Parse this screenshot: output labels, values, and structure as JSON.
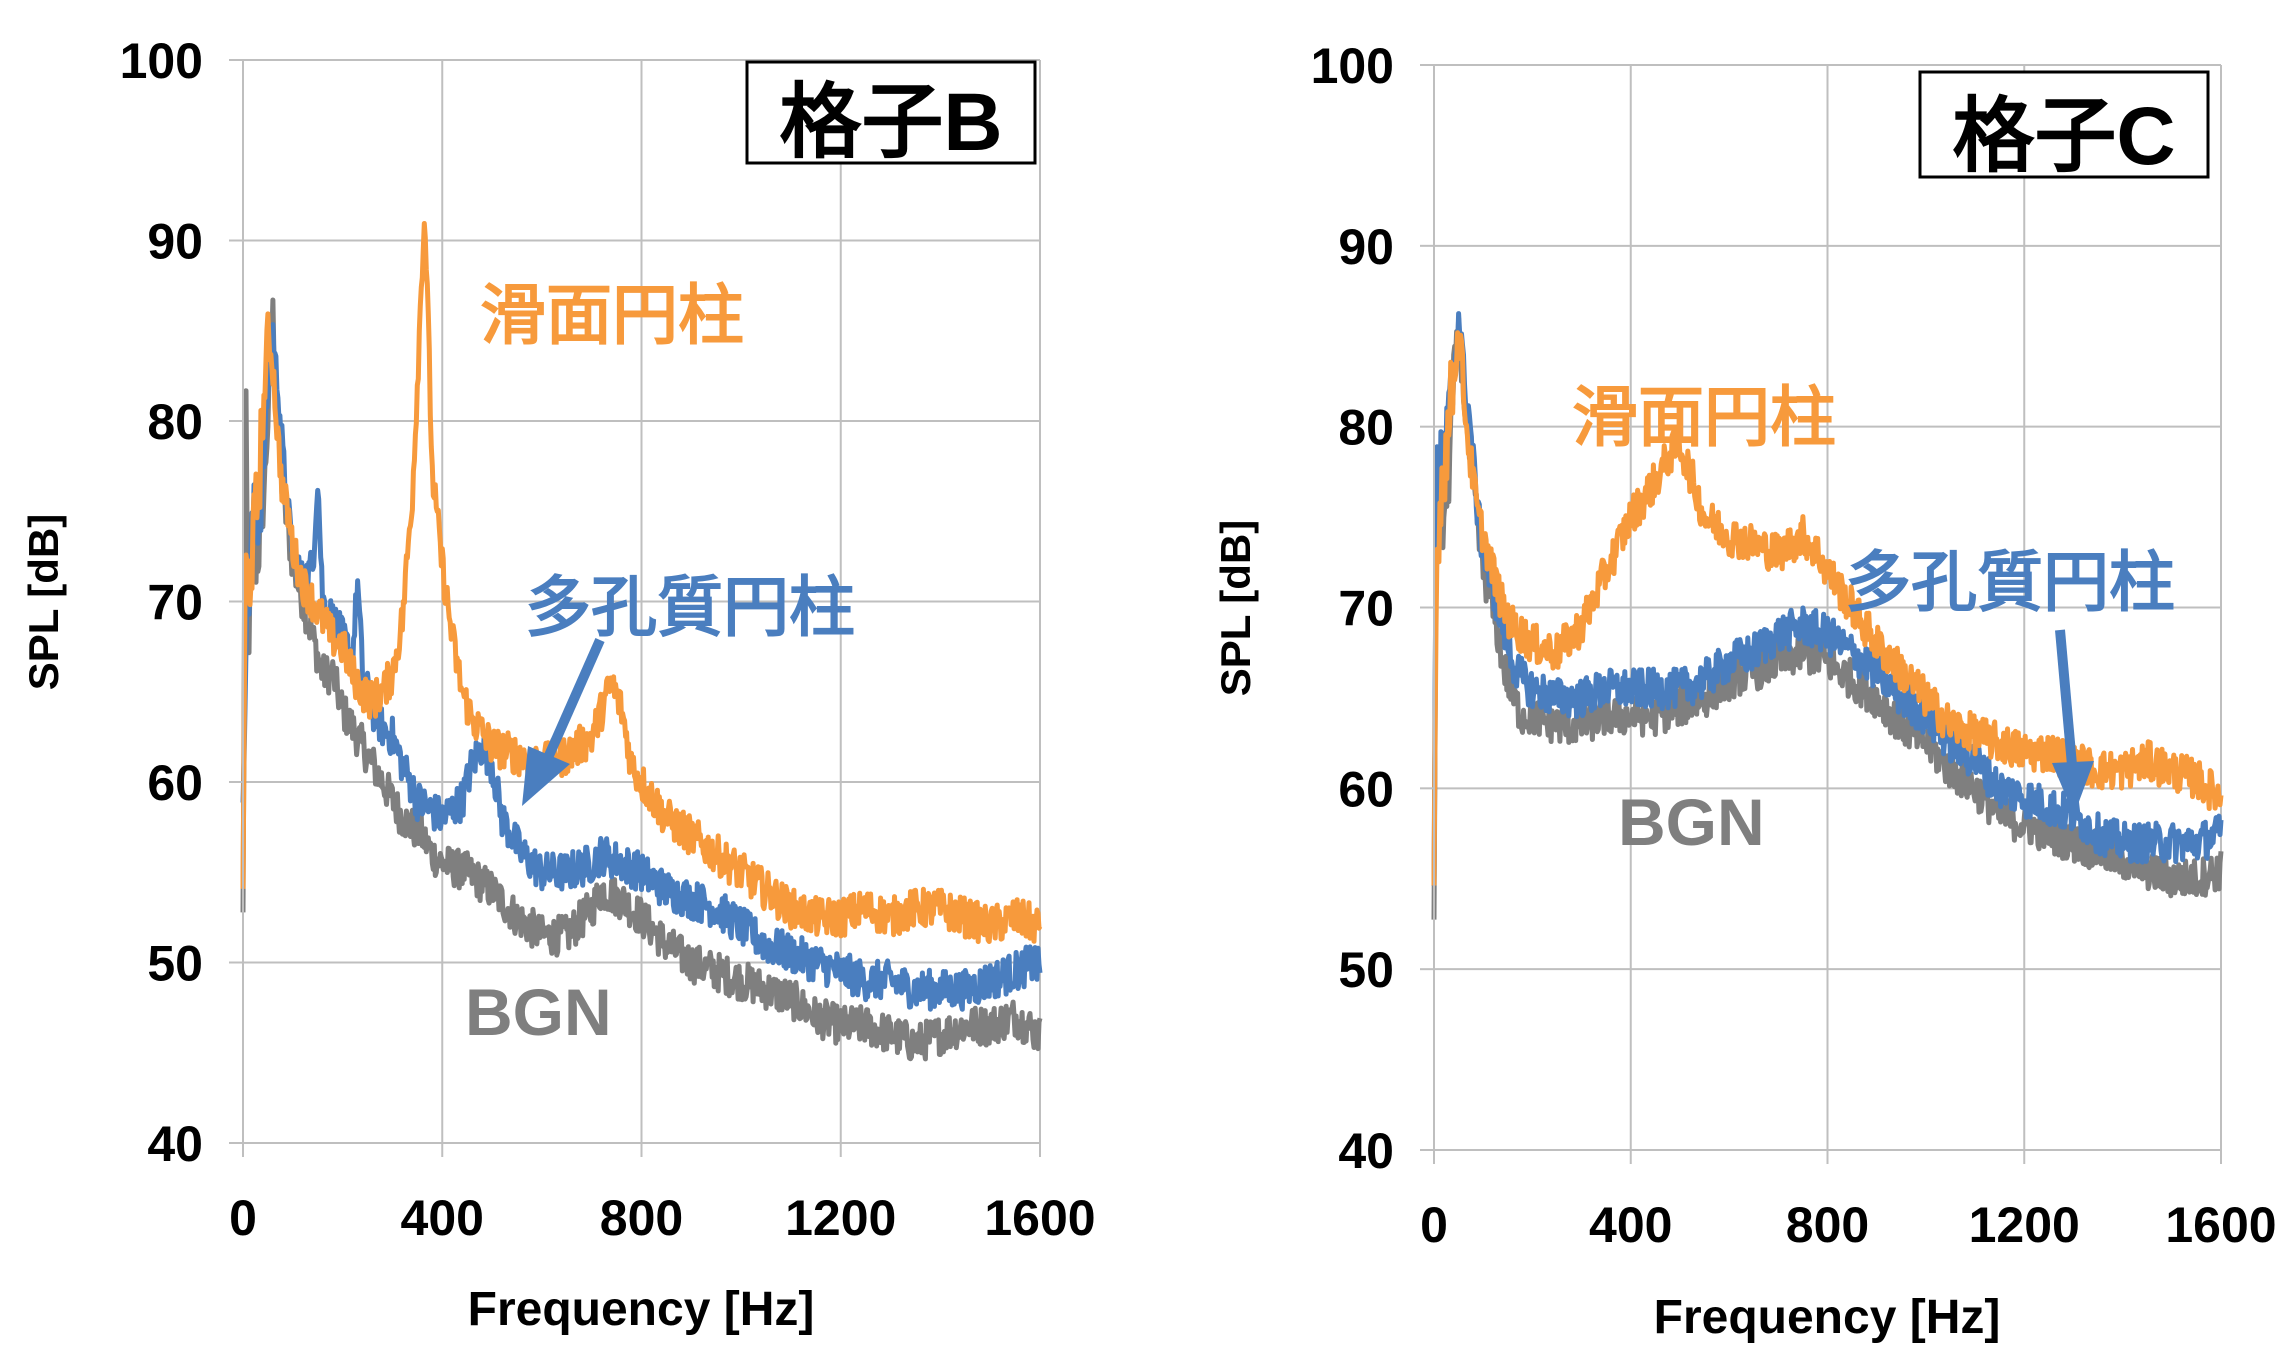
{
  "colors": {
    "smooth": "#F79A3C",
    "porous": "#4A7EBF",
    "bgn": "#7F7F7F",
    "grid": "#BFBFBF",
    "axis": "#000000"
  },
  "chart_data": [
    {
      "type": "line",
      "title": "格子B",
      "xlabel": "Frequency [Hz]",
      "ylabel": "SPL [dB]",
      "xlim": [
        0,
        1600
      ],
      "ylim": [
        40,
        100
      ],
      "xticks": [
        0,
        400,
        800,
        1200,
        1600
      ],
      "yticks": [
        40,
        50,
        60,
        70,
        80,
        90,
        100
      ],
      "grid": true,
      "series": [
        {
          "name": "BGN",
          "color": "#7F7F7F",
          "x": [
            0,
            5,
            10,
            20,
            30,
            40,
            50,
            60,
            65,
            70,
            80,
            90,
            100,
            120,
            140,
            160,
            180,
            200,
            220,
            240,
            260,
            280,
            300,
            320,
            340,
            360,
            380,
            400,
            450,
            500,
            550,
            600,
            650,
            700,
            720,
            760,
            800,
            850,
            900,
            950,
            1000,
            1050,
            1100,
            1150,
            1200,
            1250,
            1300,
            1350,
            1400,
            1450,
            1500,
            1550,
            1600
          ],
          "y": [
            52,
            82,
            68,
            72,
            73,
            75,
            80,
            86,
            82,
            79,
            76,
            74,
            72,
            70,
            68,
            66,
            66,
            64,
            63,
            62,
            61,
            60,
            59,
            58,
            57.5,
            57,
            56,
            55.5,
            55,
            54,
            52.5,
            51.5,
            51.5,
            53,
            54,
            53.5,
            52.5,
            51,
            50,
            49.5,
            49,
            48.5,
            48,
            47,
            46.5,
            46.5,
            46,
            45.5,
            46,
            46.5,
            46.5,
            47,
            46
          ]
        },
        {
          "name": "多孔質円柱",
          "color": "#4A7EBF",
          "x": [
            0,
            5,
            10,
            20,
            30,
            40,
            50,
            60,
            65,
            70,
            80,
            90,
            100,
            120,
            140,
            150,
            160,
            180,
            200,
            220,
            230,
            240,
            260,
            280,
            300,
            320,
            350,
            400,
            440,
            460,
            480,
            500,
            520,
            560,
            600,
            650,
            700,
            720,
            760,
            800,
            850,
            900,
            950,
            1000,
            1050,
            1100,
            1150,
            1200,
            1250,
            1300,
            1350,
            1400,
            1450,
            1500,
            1550,
            1590,
            1600
          ],
          "y": [
            60,
            68,
            70,
            74,
            75,
            77,
            82,
            85,
            83,
            82,
            78,
            75,
            73,
            71,
            72,
            77,
            70,
            69,
            68,
            67,
            71,
            66,
            64,
            63,
            62.5,
            61,
            59,
            58,
            59,
            61,
            62,
            61,
            58,
            56,
            55,
            55,
            55.5,
            56,
            55.5,
            55,
            54,
            53.5,
            53,
            52,
            51,
            50.5,
            50,
            49.5,
            49,
            49,
            48.5,
            48.5,
            48.5,
            49,
            49.5,
            50,
            49.5
          ]
        },
        {
          "name": "滑面円柱",
          "color": "#F79A3C",
          "x": [
            0,
            5,
            10,
            20,
            30,
            40,
            50,
            60,
            65,
            70,
            80,
            90,
            100,
            120,
            140,
            160,
            180,
            200,
            220,
            240,
            260,
            280,
            300,
            320,
            340,
            350,
            360,
            365,
            370,
            380,
            400,
            420,
            440,
            460,
            500,
            550,
            600,
            650,
            700,
            720,
            740,
            760,
            780,
            800,
            850,
            900,
            950,
            1000,
            1050,
            1100,
            1150,
            1200,
            1250,
            1300,
            1350,
            1400,
            1450,
            1500,
            1550,
            1600
          ],
          "y": [
            55,
            72,
            71,
            73,
            76,
            80,
            85,
            83,
            81,
            79,
            76,
            75,
            73,
            71,
            70,
            69,
            68,
            67.5,
            66,
            65,
            64.5,
            65,
            66,
            69,
            76,
            82,
            89,
            91.5,
            87,
            77,
            72,
            68,
            65,
            63.5,
            62,
            61.5,
            61,
            61.5,
            62.5,
            64,
            65.5,
            64,
            61,
            60,
            58,
            57,
            56,
            55,
            54,
            53,
            52.5,
            52.5,
            53,
            52.5,
            53,
            53,
            52.5,
            52,
            52.5,
            52
          ]
        }
      ]
    },
    {
      "type": "line",
      "title": "格子C",
      "xlabel": "Frequency [Hz]",
      "ylabel": "SPL [dB]",
      "xlim": [
        0,
        1600
      ],
      "ylim": [
        40,
        100
      ],
      "xticks": [
        0,
        400,
        800,
        1200,
        1600
      ],
      "yticks": [
        40,
        50,
        60,
        70,
        80,
        90,
        100
      ],
      "grid": true,
      "series": [
        {
          "name": "BGN",
          "color": "#7F7F7F",
          "x": [
            0,
            5,
            10,
            20,
            30,
            40,
            50,
            55,
            60,
            70,
            80,
            90,
            100,
            120,
            140,
            160,
            180,
            200,
            250,
            300,
            350,
            400,
            450,
            500,
            550,
            600,
            650,
            700,
            750,
            800,
            850,
            900,
            950,
            1000,
            1050,
            1100,
            1150,
            1200,
            1250,
            1300,
            1350,
            1400,
            1450,
            1500,
            1550,
            1600
          ],
          "y": [
            54,
            77,
            73,
            75,
            78,
            83,
            85,
            84,
            82,
            79,
            77,
            74,
            72,
            70,
            67,
            65,
            64,
            64,
            63.5,
            63.5,
            64,
            64,
            64,
            64.5,
            65,
            66,
            66.5,
            67,
            67.5,
            67,
            66,
            65,
            63.5,
            62.5,
            61,
            60,
            58.5,
            58,
            57.5,
            57,
            56.5,
            56,
            55.5,
            55,
            55,
            55.5
          ]
        },
        {
          "name": "多孔質円柱",
          "color": "#4A7EBF",
          "x": [
            0,
            5,
            10,
            20,
            30,
            40,
            50,
            55,
            60,
            70,
            80,
            90,
            100,
            120,
            140,
            160,
            180,
            200,
            250,
            300,
            350,
            400,
            450,
            500,
            550,
            600,
            650,
            700,
            750,
            800,
            850,
            900,
            950,
            1000,
            1050,
            1100,
            1150,
            1200,
            1250,
            1300,
            1350,
            1400,
            1450,
            1500,
            1550,
            1600
          ],
          "y": [
            55,
            80,
            77,
            78,
            80,
            83,
            86,
            85,
            83,
            81,
            78,
            75,
            73,
            71,
            69,
            67,
            66,
            65.5,
            65,
            65,
            65.5,
            65.5,
            65.5,
            65.5,
            66,
            67,
            67.5,
            68.5,
            69,
            68.5,
            67.5,
            66.5,
            65,
            64,
            62.5,
            61.5,
            60,
            59.5,
            59,
            58.5,
            57.5,
            57,
            57,
            57,
            57,
            57.5
          ]
        },
        {
          "name": "滑面円柱",
          "color": "#F79A3C",
          "x": [
            0,
            5,
            10,
            20,
            30,
            40,
            50,
            55,
            60,
            70,
            80,
            90,
            100,
            120,
            140,
            160,
            180,
            200,
            250,
            300,
            350,
            400,
            450,
            480,
            500,
            520,
            550,
            600,
            650,
            700,
            750,
            780,
            800,
            850,
            900,
            950,
            1000,
            1050,
            1100,
            1150,
            1200,
            1250,
            1300,
            1350,
            1400,
            1450,
            1500,
            1550,
            1600
          ],
          "y": [
            55,
            72,
            75,
            78,
            80,
            83,
            85,
            84.5,
            82,
            79,
            77,
            75,
            74,
            72,
            70,
            69,
            68.5,
            68,
            67.5,
            69,
            72,
            75,
            77,
            78.5,
            79,
            77.5,
            75,
            74,
            73.5,
            73,
            74,
            73,
            72,
            70,
            68,
            66.5,
            65,
            63.5,
            63,
            62.5,
            62,
            62,
            61.5,
            61,
            61,
            61.5,
            61,
            60.5,
            59.5
          ]
        }
      ]
    }
  ],
  "annotations": [
    {
      "text": "滑面円柱",
      "color": "#F79A3C"
    },
    {
      "text": "多孔質円柱",
      "color": "#4A7EBF"
    },
    {
      "text": "BGN",
      "color": "#7F7F7F"
    },
    {
      "text": "滑面円柱",
      "color": "#F79A3C"
    },
    {
      "text": "多孔質円柱",
      "color": "#4A7EBF"
    },
    {
      "text": "BGN",
      "color": "#7F7F7F"
    }
  ]
}
